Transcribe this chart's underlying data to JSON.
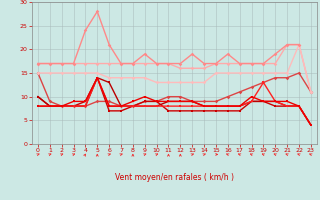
{
  "xlabel": "Vent moyen/en rafales ( km/h )",
  "bg_color": "#cce8e4",
  "grid_color": "#aabbbb",
  "xlim": [
    -0.5,
    23.5
  ],
  "ylim": [
    0,
    30
  ],
  "yticks": [
    0,
    5,
    10,
    15,
    20,
    25,
    30
  ],
  "xticks": [
    0,
    1,
    2,
    3,
    4,
    5,
    6,
    7,
    8,
    9,
    10,
    11,
    12,
    13,
    14,
    15,
    16,
    17,
    18,
    19,
    20,
    21,
    22,
    23
  ],
  "lines": [
    {
      "y": [
        15,
        9,
        8,
        8,
        8,
        9,
        9,
        8,
        8,
        9,
        9,
        10,
        10,
        9,
        9,
        9,
        10,
        11,
        12,
        13,
        14,
        14,
        15,
        11
      ],
      "color": "#dd4444",
      "lw": 1.0,
      "marker": "D",
      "ms": 1.8,
      "alpha": 1.0
    },
    {
      "y": [
        10,
        8,
        8,
        8,
        9,
        14,
        7,
        7,
        8,
        9,
        9,
        7,
        7,
        7,
        7,
        7,
        7,
        7,
        9,
        9,
        8,
        8,
        8,
        4
      ],
      "color": "#cc0000",
      "lw": 1.0,
      "marker": "s",
      "ms": 1.8,
      "alpha": 1.0
    },
    {
      "y": [
        10,
        8,
        8,
        8,
        8,
        14,
        13,
        8,
        8,
        8,
        8,
        9,
        9,
        9,
        8,
        8,
        8,
        8,
        9,
        9,
        9,
        8,
        8,
        4
      ],
      "color": "#bb0000",
      "lw": 1.0,
      "marker": "s",
      "ms": 1.8,
      "alpha": 1.0
    },
    {
      "y": [
        8,
        8,
        8,
        8,
        8,
        14,
        8,
        8,
        8,
        8,
        8,
        8,
        8,
        8,
        8,
        8,
        8,
        8,
        9,
        13,
        9,
        8,
        8,
        4
      ],
      "color": "#ff2222",
      "lw": 1.0,
      "marker": "s",
      "ms": 1.8,
      "alpha": 1.0
    },
    {
      "y": [
        8,
        8,
        8,
        9,
        9,
        14,
        8,
        8,
        9,
        10,
        9,
        9,
        9,
        9,
        8,
        8,
        8,
        8,
        10,
        9,
        9,
        9,
        8,
        4
      ],
      "color": "#ee0000",
      "lw": 1.0,
      "marker": "s",
      "ms": 1.8,
      "alpha": 1.0
    },
    {
      "y": [
        17,
        17,
        17,
        17,
        17,
        17,
        17,
        17,
        17,
        17,
        17,
        17,
        16,
        16,
        16,
        17,
        17,
        17,
        17,
        17,
        17,
        21,
        21,
        11
      ],
      "color": "#ffaaaa",
      "lw": 1.0,
      "marker": "D",
      "ms": 1.8,
      "alpha": 1.0
    },
    {
      "y": [
        15,
        15,
        15,
        15,
        15,
        15,
        14,
        14,
        14,
        14,
        13,
        13,
        13,
        13,
        13,
        15,
        15,
        15,
        15,
        15,
        15,
        15,
        21,
        11
      ],
      "color": "#ffbbbb",
      "lw": 1.0,
      "marker": "D",
      "ms": 1.8,
      "alpha": 1.0
    },
    {
      "y": [
        17,
        17,
        17,
        17,
        24,
        28,
        21,
        17,
        17,
        19,
        17,
        17,
        17,
        19,
        17,
        17,
        19,
        17,
        17,
        17,
        19,
        21,
        21,
        null
      ],
      "color": "#ff8888",
      "lw": 1.0,
      "marker": "D",
      "ms": 1.8,
      "alpha": 1.0
    }
  ],
  "arrow_color": "#ee3333",
  "arrow_angles": [
    45,
    45,
    45,
    45,
    15,
    0,
    45,
    45,
    0,
    45,
    45,
    0,
    0,
    45,
    45,
    90,
    315,
    315,
    315,
    315,
    315,
    315,
    315,
    315
  ]
}
